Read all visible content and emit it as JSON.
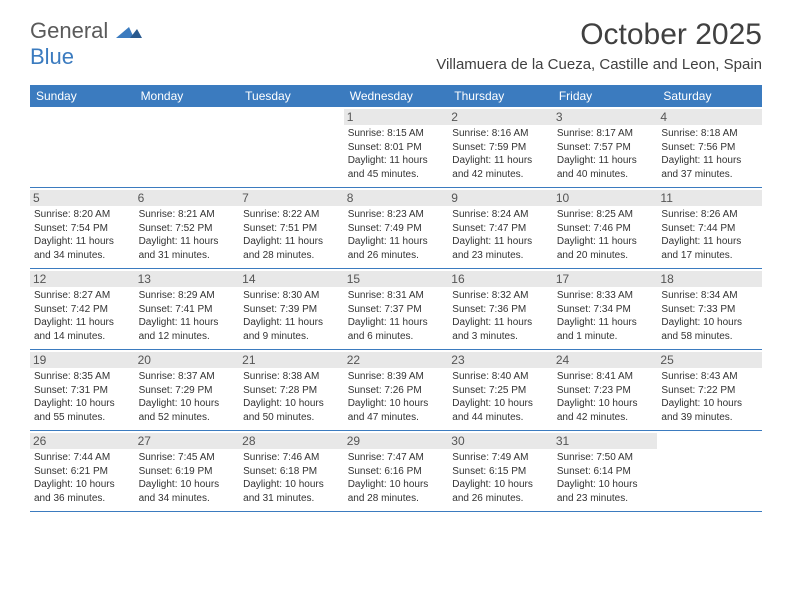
{
  "logo": {
    "general": "General",
    "blue": "Blue"
  },
  "title": "October 2025",
  "location": "Villamuera de la Cueza, Castille and Leon, Spain",
  "colors": {
    "header_bg": "#3b7bbf",
    "header_text": "#ffffff",
    "daynum_bg": "#e8e8e8",
    "daynum_text": "#555555",
    "body_text": "#333333",
    "title_text": "#404040",
    "row_border": "#3b7bbf"
  },
  "day_headers": [
    "Sunday",
    "Monday",
    "Tuesday",
    "Wednesday",
    "Thursday",
    "Friday",
    "Saturday"
  ],
  "weeks": [
    [
      null,
      null,
      null,
      {
        "n": "1",
        "sr": "8:15 AM",
        "ss": "8:01 PM",
        "dl": "11 hours and 45 minutes."
      },
      {
        "n": "2",
        "sr": "8:16 AM",
        "ss": "7:59 PM",
        "dl": "11 hours and 42 minutes."
      },
      {
        "n": "3",
        "sr": "8:17 AM",
        "ss": "7:57 PM",
        "dl": "11 hours and 40 minutes."
      },
      {
        "n": "4",
        "sr": "8:18 AM",
        "ss": "7:56 PM",
        "dl": "11 hours and 37 minutes."
      }
    ],
    [
      {
        "n": "5",
        "sr": "8:20 AM",
        "ss": "7:54 PM",
        "dl": "11 hours and 34 minutes."
      },
      {
        "n": "6",
        "sr": "8:21 AM",
        "ss": "7:52 PM",
        "dl": "11 hours and 31 minutes."
      },
      {
        "n": "7",
        "sr": "8:22 AM",
        "ss": "7:51 PM",
        "dl": "11 hours and 28 minutes."
      },
      {
        "n": "8",
        "sr": "8:23 AM",
        "ss": "7:49 PM",
        "dl": "11 hours and 26 minutes."
      },
      {
        "n": "9",
        "sr": "8:24 AM",
        "ss": "7:47 PM",
        "dl": "11 hours and 23 minutes."
      },
      {
        "n": "10",
        "sr": "8:25 AM",
        "ss": "7:46 PM",
        "dl": "11 hours and 20 minutes."
      },
      {
        "n": "11",
        "sr": "8:26 AM",
        "ss": "7:44 PM",
        "dl": "11 hours and 17 minutes."
      }
    ],
    [
      {
        "n": "12",
        "sr": "8:27 AM",
        "ss": "7:42 PM",
        "dl": "11 hours and 14 minutes."
      },
      {
        "n": "13",
        "sr": "8:29 AM",
        "ss": "7:41 PM",
        "dl": "11 hours and 12 minutes."
      },
      {
        "n": "14",
        "sr": "8:30 AM",
        "ss": "7:39 PM",
        "dl": "11 hours and 9 minutes."
      },
      {
        "n": "15",
        "sr": "8:31 AM",
        "ss": "7:37 PM",
        "dl": "11 hours and 6 minutes."
      },
      {
        "n": "16",
        "sr": "8:32 AM",
        "ss": "7:36 PM",
        "dl": "11 hours and 3 minutes."
      },
      {
        "n": "17",
        "sr": "8:33 AM",
        "ss": "7:34 PM",
        "dl": "11 hours and 1 minute."
      },
      {
        "n": "18",
        "sr": "8:34 AM",
        "ss": "7:33 PM",
        "dl": "10 hours and 58 minutes."
      }
    ],
    [
      {
        "n": "19",
        "sr": "8:35 AM",
        "ss": "7:31 PM",
        "dl": "10 hours and 55 minutes."
      },
      {
        "n": "20",
        "sr": "8:37 AM",
        "ss": "7:29 PM",
        "dl": "10 hours and 52 minutes."
      },
      {
        "n": "21",
        "sr": "8:38 AM",
        "ss": "7:28 PM",
        "dl": "10 hours and 50 minutes."
      },
      {
        "n": "22",
        "sr": "8:39 AM",
        "ss": "7:26 PM",
        "dl": "10 hours and 47 minutes."
      },
      {
        "n": "23",
        "sr": "8:40 AM",
        "ss": "7:25 PM",
        "dl": "10 hours and 44 minutes."
      },
      {
        "n": "24",
        "sr": "8:41 AM",
        "ss": "7:23 PM",
        "dl": "10 hours and 42 minutes."
      },
      {
        "n": "25",
        "sr": "8:43 AM",
        "ss": "7:22 PM",
        "dl": "10 hours and 39 minutes."
      }
    ],
    [
      {
        "n": "26",
        "sr": "7:44 AM",
        "ss": "6:21 PM",
        "dl": "10 hours and 36 minutes."
      },
      {
        "n": "27",
        "sr": "7:45 AM",
        "ss": "6:19 PM",
        "dl": "10 hours and 34 minutes."
      },
      {
        "n": "28",
        "sr": "7:46 AM",
        "ss": "6:18 PM",
        "dl": "10 hours and 31 minutes."
      },
      {
        "n": "29",
        "sr": "7:47 AM",
        "ss": "6:16 PM",
        "dl": "10 hours and 28 minutes."
      },
      {
        "n": "30",
        "sr": "7:49 AM",
        "ss": "6:15 PM",
        "dl": "10 hours and 26 minutes."
      },
      {
        "n": "31",
        "sr": "7:50 AM",
        "ss": "6:14 PM",
        "dl": "10 hours and 23 minutes."
      },
      null
    ]
  ],
  "labels": {
    "sunrise": "Sunrise: ",
    "sunset": "Sunset: ",
    "daylight": "Daylight: "
  }
}
